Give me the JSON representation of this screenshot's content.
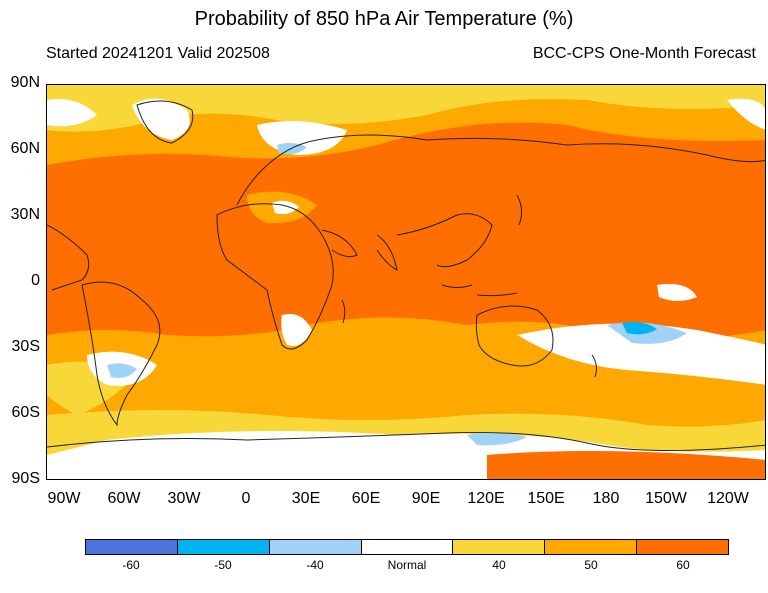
{
  "title": "Probability of 850 hPa Air Temperature (%)",
  "subtitle_left": "Started 20241201  Valid 202508",
  "subtitle_right": "BCC-CPS One-Month Forecast",
  "lat_labels": [
    "90N",
    "60N",
    "30N",
    "0",
    "30S",
    "60S",
    "90S"
  ],
  "lon_labels": [
    "90W",
    "60W",
    "30W",
    "0",
    "30E",
    "60E",
    "90E",
    "120E",
    "150E",
    "180",
    "150W",
    "120W"
  ],
  "legend": {
    "labels": [
      "-60",
      "-50",
      "-40",
      "Normal",
      "40",
      "50",
      "60"
    ],
    "colors": [
      "#4c72dc",
      "#00b4f0",
      "#a0d2f8",
      "#ffffff",
      "#f8d838",
      "#ffa800",
      "#ff6e00"
    ]
  },
  "map_colors": {
    "warm_60": "#ff6e00",
    "warm_50": "#ffa800",
    "warm_40": "#f8d838",
    "normal": "#ffffff",
    "cold_40": "#a0d2f8",
    "cold_50": "#00b4f0"
  }
}
